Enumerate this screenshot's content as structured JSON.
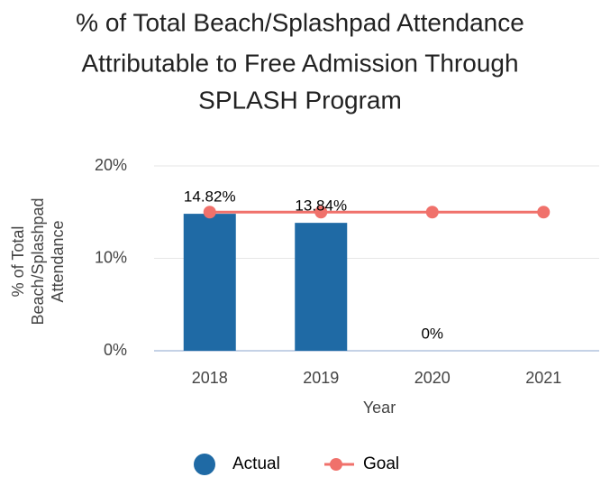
{
  "chart_data": {
    "type": "bar",
    "title": [
      "% of Total Beach/Splashpad Attendance",
      "Attributable to Free Admission Through",
      "SPLASH Program"
    ],
    "ylabel": [
      "% of Total",
      "Beach/Splashpad",
      "Attendance"
    ],
    "xlabel": "Year",
    "categories": [
      "2018",
      "2019",
      "2020",
      "2021"
    ],
    "series": [
      {
        "name": "Actual",
        "type": "bar",
        "color": "#1f6aa5",
        "values": [
          14.82,
          13.84,
          0,
          null
        ],
        "value_labels": [
          "14.82%",
          "13.84%",
          "0%",
          null
        ]
      },
      {
        "name": "Goal",
        "type": "line",
        "color": "#f0716b",
        "values": [
          15,
          15,
          15,
          15
        ]
      }
    ],
    "ylim": [
      0,
      20
    ],
    "yticks": [
      {
        "value": 0,
        "label": "0%"
      },
      {
        "value": 10,
        "label": "10%"
      },
      {
        "value": 20,
        "label": "20%"
      }
    ],
    "grid": true,
    "legend": "bottom"
  }
}
